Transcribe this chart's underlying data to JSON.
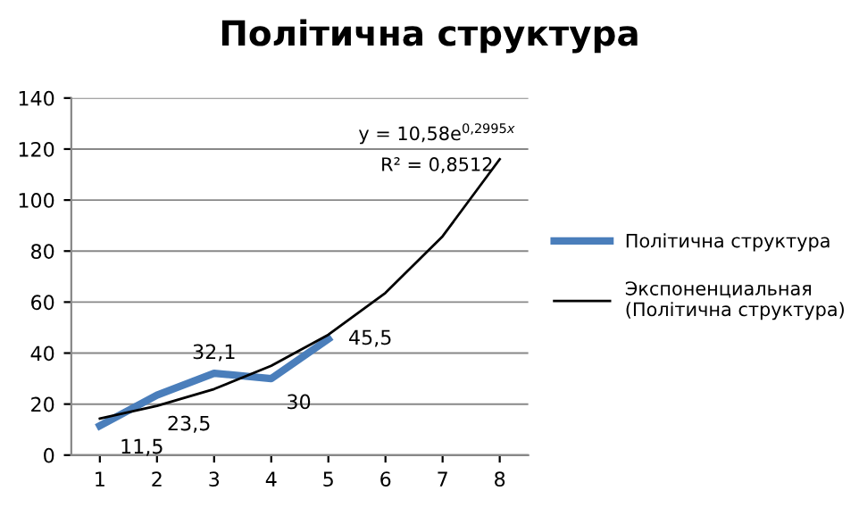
{
  "chart_data": {
    "type": "line",
    "title": "Політична структура",
    "x": [
      1,
      2,
      3,
      4,
      5
    ],
    "xlim": [
      0.5,
      8.5
    ],
    "xticks": [
      1,
      2,
      3,
      4,
      5,
      6,
      7,
      8
    ],
    "ylim": [
      0,
      140
    ],
    "yticks": [
      0,
      20,
      40,
      60,
      80,
      100,
      120,
      140
    ],
    "grid": "y",
    "legend": "right",
    "marker": "none",
    "line_style": "solid",
    "series": [
      {
        "name": "Політична структура",
        "color": "#4a7ebb",
        "values": [
          11.5,
          23.5,
          32.1,
          30,
          45.5
        ],
        "value_labels": [
          "11,5",
          "23,5",
          "32,1",
          "30",
          "45,5"
        ]
      },
      {
        "name": "Экспоненциальная (Політична структура)",
        "type": "line",
        "color": "#000000",
        "x": [
          1,
          2,
          3,
          4,
          5,
          6,
          7,
          8
        ],
        "values": [
          14.3,
          19.3,
          25.9,
          35.0,
          47.2,
          63.6,
          85.8,
          116
        ]
      }
    ],
    "annotations": [
      "y = 10,58e$^{0,2995x}$",
      "R² = 0,8512"
    ]
  }
}
